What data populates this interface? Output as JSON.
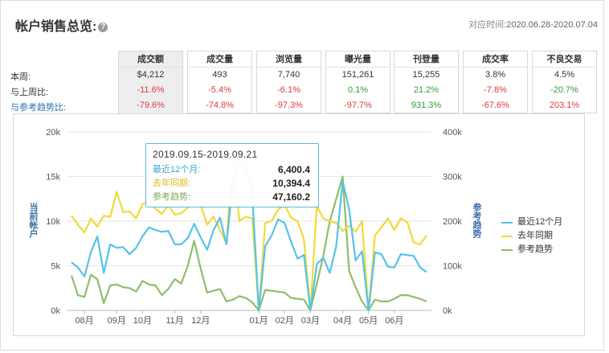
{
  "header": {
    "title": "帐户销售总览:",
    "help_icon": "?",
    "date_label": "对应时间:",
    "date_value": "2020.06.28-2020.07.04"
  },
  "rows": {
    "current": "本周:",
    "wow": "与上周比:",
    "trend": "与参考趋势比:"
  },
  "metrics": [
    {
      "label": "成交额",
      "current": "$4,212",
      "wow": "-11.6%",
      "wow_color": "red",
      "trend": "-79.6%",
      "trend_color": "red"
    },
    {
      "label": "成交量",
      "current": "493",
      "wow": "-5.4%",
      "wow_color": "red",
      "trend": "-74.8%",
      "trend_color": "red"
    },
    {
      "label": "浏览量",
      "current": "7,740",
      "wow": "-6.1%",
      "wow_color": "red",
      "trend": "-97.3%",
      "trend_color": "red"
    },
    {
      "label": "曝光量",
      "current": "151,261",
      "wow": "0.1%",
      "wow_color": "green",
      "trend": "-97.7%",
      "trend_color": "red"
    },
    {
      "label": "刊登量",
      "current": "15,255",
      "wow": "21.2%",
      "wow_color": "green",
      "trend": "931.3%",
      "trend_color": "green"
    },
    {
      "label": "成交率",
      "current": "3.8%",
      "wow": "-7.8%",
      "wow_color": "red",
      "trend": "-67.6%",
      "trend_color": "red"
    },
    {
      "label": "不良交易",
      "current": "4.5%",
      "wow": "-20.7%",
      "wow_color": "green",
      "trend": "203.1%",
      "trend_color": "red"
    }
  ],
  "tooltip": {
    "title": "2019.09.15-2019.09.21",
    "rows": [
      {
        "name": "最近12个月:",
        "value": "6,400.4"
      },
      {
        "name": "去年同期:",
        "value": "10,394.4"
      },
      {
        "name": "参考趋势:",
        "value": "47,160.2"
      }
    ]
  },
  "colors": {
    "recent": "#55c3ea",
    "lastyear": "#f2d93a",
    "trend": "#8fbe6c"
  },
  "chart_data": {
    "type": "line",
    "ylabel": "当前帐户",
    "y2label": "参考趋势",
    "ylim": [
      0,
      20000
    ],
    "y2lim": [
      0,
      400000
    ],
    "yticks": [
      "0k",
      "5k",
      "10k",
      "15k",
      "20k"
    ],
    "y2ticks": [
      "0k",
      "100k",
      "200k",
      "300k",
      "400k"
    ],
    "xticks": [
      {
        "label": "08月",
        "index": 2
      },
      {
        "label": "09月",
        "index": 7
      },
      {
        "label": "10月",
        "index": 11
      },
      {
        "label": "11月",
        "index": 16
      },
      {
        "label": "12月",
        "index": 20
      },
      {
        "label": "01月",
        "index": 29
      },
      {
        "label": "02月",
        "index": 33
      },
      {
        "label": "03月",
        "index": 37
      },
      {
        "label": "04月",
        "index": 42
      },
      {
        "label": "05月",
        "index": 46
      },
      {
        "label": "06月",
        "index": 50
      }
    ],
    "series": [
      {
        "name": "最近12个月",
        "color_key": "recent",
        "axis": "left",
        "values": [
          5400,
          4800,
          3800,
          6500,
          8300,
          4200,
          7400,
          7000,
          7100,
          6300,
          7000,
          8300,
          9300,
          9000,
          8800,
          8900,
          7400,
          7400,
          8100,
          9700,
          8200,
          6800,
          9000,
          10400,
          7400,
          14500,
          17000,
          16500,
          13000,
          0,
          7200,
          8400,
          10200,
          9800,
          7700,
          5800,
          6200,
          0,
          5200,
          5900,
          4200,
          7200,
          14500,
          11300,
          5600,
          6600,
          0,
          6500,
          6300,
          4900,
          4800,
          6300,
          6200,
          6100,
          4800,
          4300
        ]
      },
      {
        "name": "去年同期",
        "color_key": "lastyear",
        "axis": "left",
        "values": [
          10600,
          9600,
          8700,
          10300,
          9400,
          10600,
          10500,
          13300,
          11000,
          11100,
          10300,
          11900,
          12200,
          11400,
          10800,
          11800,
          10700,
          10900,
          11500,
          12600,
          11800,
          9600,
          10500,
          9000,
          7500,
          17500,
          10000,
          10500,
          10300,
          0,
          9800,
          10000,
          11300,
          11800,
          10400,
          10000,
          8000,
          0,
          11700,
          10300,
          10000,
          9800,
          8900,
          9500,
          8800,
          10000,
          0,
          8400,
          9300,
          10300,
          9000,
          10300,
          9900,
          7600,
          7400,
          8400
        ]
      },
      {
        "name": "参考趋势",
        "color_key": "trend",
        "axis": "right",
        "values": [
          78000,
          34000,
          30000,
          80000,
          70000,
          16000,
          56000,
          58000,
          52000,
          50000,
          42000,
          66000,
          58000,
          56000,
          34000,
          48000,
          70000,
          60000,
          100000,
          156000,
          94000,
          40000,
          44000,
          48000,
          20000,
          24000,
          32000,
          28000,
          18000,
          0,
          46000,
          44000,
          42000,
          40000,
          28000,
          26000,
          24000,
          0,
          60000,
          122000,
          200000,
          250000,
          300000,
          88000,
          52000,
          20000,
          0,
          24000,
          20000,
          20000,
          26000,
          34000,
          34000,
          30000,
          26000,
          20000
        ]
      }
    ]
  }
}
